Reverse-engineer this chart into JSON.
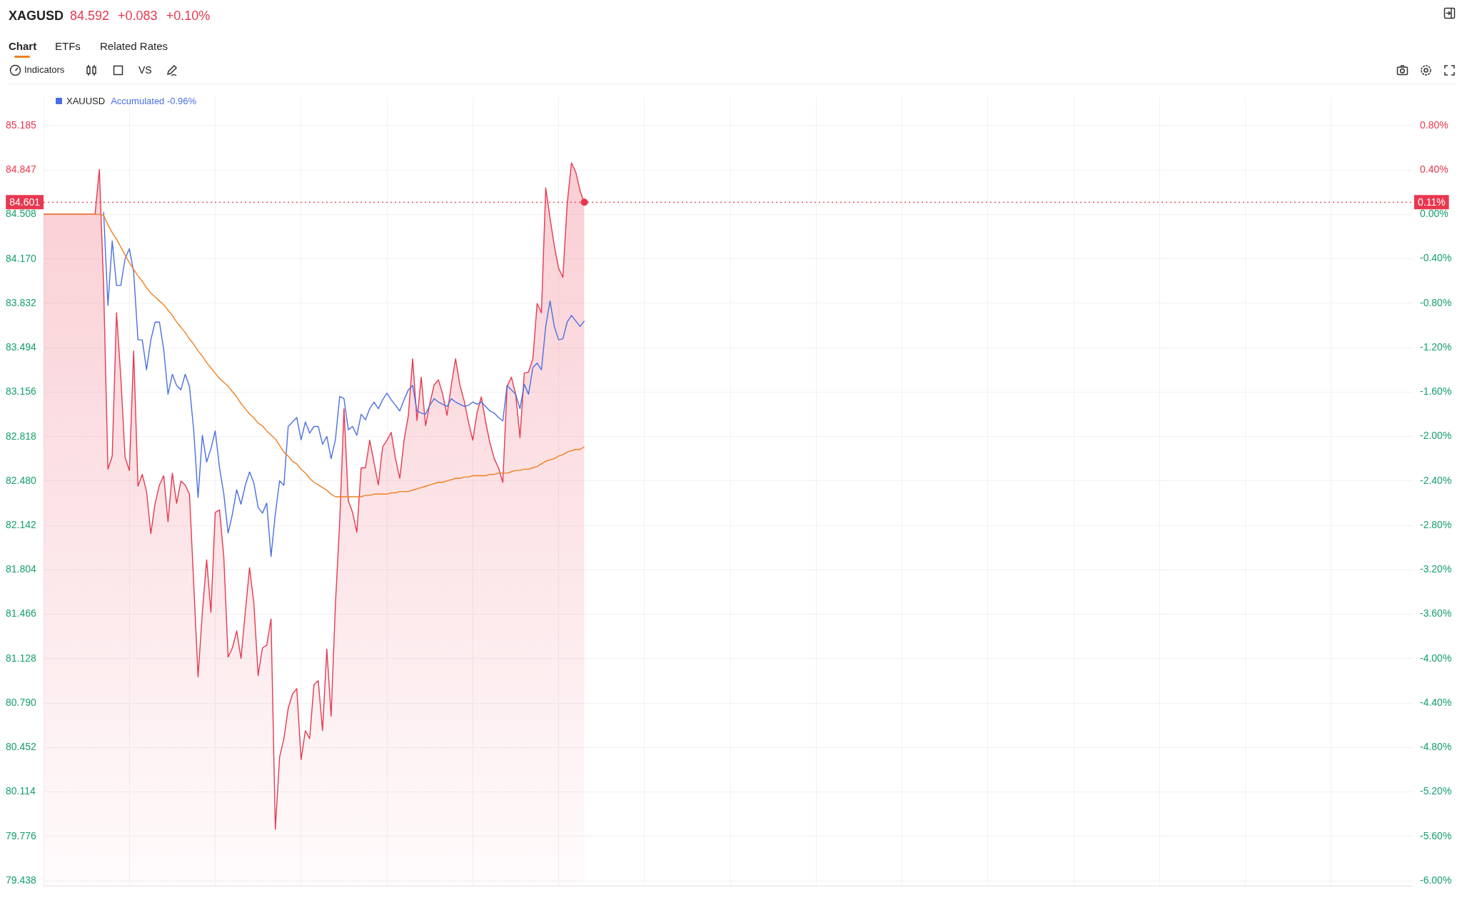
{
  "chart_data": {
    "type": "line",
    "title": "XAGUSD",
    "subtitle": "84.592 +0.083 +0.10%",
    "annotations": [
      "Chart",
      "ETFs",
      "Related Rates",
      "Indicators",
      "VS",
      "Accumulated -0.96%",
      "0.11%"
    ],
    "categories": [
      null,
      null,
      null,
      null,
      null,
      null,
      null,
      null,
      null,
      null,
      null,
      null,
      null,
      null,
      null,
      null,
      null,
      null,
      null,
      null,
      null,
      null,
      null,
      null,
      null,
      null,
      null,
      null,
      null,
      null,
      null,
      null,
      null,
      null,
      null,
      null,
      null,
      null,
      null,
      null,
      null,
      null,
      null,
      null,
      null,
      null,
      null,
      null,
      null,
      null,
      null,
      null,
      null,
      null,
      null,
      null,
      null,
      null,
      null,
      null,
      null,
      null,
      null,
      null,
      null,
      null,
      null,
      null,
      null,
      null,
      null,
      null,
      null,
      null,
      null,
      null,
      null,
      null,
      null,
      null,
      null,
      null,
      null,
      null,
      null,
      null,
      null,
      null,
      null,
      null,
      null,
      null,
      null,
      null,
      null,
      null,
      null,
      null,
      null,
      null,
      null,
      null,
      null,
      null,
      null,
      null,
      null,
      null,
      null,
      null,
      null,
      null,
      null,
      null,
      null,
      null,
      null,
      null,
      null,
      null,
      null,
      null,
      null,
      null,
      null,
      null,
      null,
      null,
      null,
      null,
      null,
      null,
      null,
      null,
      null,
      null,
      null,
      null,
      null,
      null,
      null,
      null,
      null,
      null,
      null,
      null,
      null,
      null,
      null,
      null,
      null,
      null,
      null,
      null,
      null,
      null,
      null,
      null,
      null,
      null,
      null,
      null,
      null,
      null,
      null,
      null,
      null,
      null,
      null,
      null,
      null,
      null,
      null,
      null,
      null,
      null,
      null,
      null,
      null,
      null,
      null,
      null,
      null,
      null,
      null,
      null,
      null,
      null,
      null,
      null,
      null,
      null,
      null,
      null,
      null,
      null,
      null,
      null,
      null,
      null,
      null,
      null,
      null,
      null,
      null,
      null,
      null,
      null,
      null,
      null,
      null,
      null,
      null,
      null,
      null,
      null,
      null,
      null,
      null,
      null,
      null,
      null,
      null,
      null,
      null,
      null,
      null,
      null,
      null,
      null,
      null,
      null,
      null,
      null,
      null,
      null,
      null,
      null,
      null,
      null,
      null,
      null,
      null,
      null,
      null,
      null,
      null,
      null,
      null,
      null,
      null,
      null,
      null,
      null,
      null,
      null,
      null,
      null,
      null,
      null,
      null,
      null,
      null,
      null,
      null,
      null,
      null,
      null,
      null,
      null,
      null,
      null,
      null,
      null,
      null,
      null,
      null,
      null,
      null,
      null,
      null,
      null,
      null,
      null,
      null,
      null,
      null,
      null,
      null,
      null,
      null,
      null,
      null,
      null,
      null,
      null,
      null,
      null,
      null,
      null,
      null,
      null,
      null,
      null,
      null,
      null,
      null,
      null,
      null,
      null,
      null,
      null,
      null,
      null,
      null,
      null,
      null,
      null,
      null,
      null
    ],
    "series": [
      {
        "type": "area",
        "color": "#e8384f",
        "values": [
          84.51,
          84.51,
          84.51,
          84.51,
          84.51,
          84.51,
          84.51,
          84.51,
          84.51,
          84.51,
          84.51,
          84.51,
          84.51,
          84.85,
          83.96,
          82.57,
          82.67,
          83.76,
          83.27,
          82.66,
          82.56,
          83.47,
          82.44,
          82.53,
          82.4,
          82.08,
          82.31,
          82.45,
          82.52,
          82.17,
          82.54,
          82.31,
          82.48,
          82.45,
          82.38,
          81.69,
          80.99,
          81.48,
          81.88,
          81.48,
          82.24,
          82.26,
          81.9,
          81.14,
          81.21,
          81.34,
          81.13,
          81.48,
          81.82,
          81.55,
          81.0,
          81.21,
          81.23,
          81.43,
          79.83,
          80.38,
          80.52,
          80.75,
          80.86,
          80.9,
          80.36,
          80.58,
          80.52,
          80.93,
          80.96,
          80.58,
          81.2,
          80.69,
          81.54,
          82.17,
          83.03,
          82.33,
          82.24,
          82.09,
          82.58,
          82.58,
          82.79,
          82.62,
          82.45,
          82.74,
          82.79,
          82.85,
          82.65,
          82.5,
          82.79,
          82.98,
          83.41,
          82.94,
          83.27,
          82.9,
          83.07,
          83.21,
          83.25,
          83.14,
          82.98,
          83.21,
          83.41,
          83.21,
          83.09,
          82.93,
          82.79,
          83.0,
          83.12,
          82.93,
          82.77,
          82.65,
          82.58,
          82.47,
          83.2,
          83.27,
          83.14,
          82.81,
          83.3,
          83.31,
          83.41,
          83.83,
          83.76,
          84.71,
          84.48,
          84.27,
          84.1,
          84.03,
          84.59,
          84.9,
          84.83,
          84.69,
          84.59,
          null,
          null,
          null,
          null,
          null,
          null,
          null,
          null,
          null,
          null,
          null,
          null,
          null,
          null,
          null,
          null,
          null,
          null,
          null,
          null,
          null,
          null,
          null,
          null,
          null,
          null,
          null,
          null,
          null,
          null,
          null,
          null,
          null,
          null,
          null,
          null,
          null,
          null,
          null,
          null,
          null,
          null,
          null,
          null,
          null,
          null,
          null,
          null,
          null,
          null,
          null,
          null,
          null,
          null,
          null,
          null,
          null,
          null,
          null,
          null,
          null,
          null,
          null,
          null,
          null,
          null,
          null,
          null,
          null,
          null,
          null,
          null,
          null,
          null,
          null,
          null,
          null,
          null,
          null,
          null,
          null,
          null,
          null,
          null,
          null,
          null,
          null,
          null,
          null,
          null,
          null,
          null,
          null,
          null,
          null,
          null,
          null,
          null,
          null,
          null,
          null,
          null,
          null,
          null,
          null,
          null,
          null,
          null,
          null,
          null,
          null,
          null,
          null,
          null,
          null,
          null,
          null,
          null,
          null,
          null,
          null,
          null,
          null,
          null,
          null,
          null,
          null,
          null,
          null,
          null,
          null,
          null,
          null,
          null,
          null,
          null,
          null,
          null,
          null,
          null,
          null,
          null,
          null,
          null,
          null,
          null,
          null,
          null,
          null,
          null,
          null,
          null,
          null,
          null,
          null,
          null,
          null,
          null,
          null,
          null,
          null,
          null,
          null,
          null,
          null,
          null,
          null,
          null,
          null,
          null,
          null,
          null,
          null,
          null,
          null,
          null,
          null,
          null,
          null,
          null,
          null,
          null,
          null,
          null,
          null,
          null,
          null,
          null,
          null,
          null,
          null,
          null,
          null
        ]
      },
      {
        "type": "line",
        "name": "XAUUSD",
        "color": "#4a6fe3",
        "axis": "y2",
        "values": [
          null,
          null,
          null,
          null,
          null,
          null,
          null,
          null,
          null,
          null,
          null,
          null,
          null,
          null,
          0.02,
          -0.82,
          -0.24,
          -0.64,
          -0.64,
          -0.4,
          -0.31,
          -0.52,
          -1.13,
          -1.13,
          -1.4,
          -1.13,
          -0.97,
          -0.97,
          -1.22,
          -1.62,
          -1.44,
          -1.54,
          -1.58,
          -1.44,
          -1.55,
          -1.95,
          -2.55,
          -1.99,
          -2.23,
          -2.11,
          -1.95,
          -2.28,
          -2.52,
          -2.87,
          -2.7,
          -2.48,
          -2.61,
          -2.44,
          -2.32,
          -2.42,
          -2.64,
          -2.69,
          -2.6,
          -3.08,
          -2.7,
          -2.4,
          -2.44,
          -1.91,
          -1.87,
          -1.83,
          -2.03,
          -1.87,
          -1.97,
          -1.91,
          -1.91,
          -2.07,
          -2.0,
          -2.2,
          -2.03,
          -1.64,
          -1.66,
          -1.94,
          -1.91,
          -1.99,
          -1.8,
          -1.85,
          -1.75,
          -1.69,
          -1.75,
          -1.67,
          -1.61,
          -1.67,
          -1.72,
          -1.77,
          -1.67,
          -1.58,
          -1.54,
          -1.77,
          -1.79,
          -1.8,
          -1.72,
          -1.66,
          -1.69,
          -1.71,
          -1.73,
          -1.66,
          -1.69,
          -1.71,
          -1.73,
          -1.72,
          -1.69,
          -1.71,
          -1.69,
          -1.73,
          -1.77,
          -1.79,
          -1.83,
          -1.86,
          -1.54,
          -1.58,
          -1.62,
          -1.75,
          -1.53,
          -1.62,
          -1.38,
          -1.34,
          -1.4,
          -1.01,
          -0.78,
          -1.01,
          -1.13,
          -1.12,
          -0.97,
          -0.91,
          -0.96,
          -1.01,
          -0.96,
          null,
          null,
          null,
          null,
          null,
          null,
          null,
          null,
          null,
          null,
          null,
          null,
          null,
          null,
          null,
          null,
          null,
          null,
          null,
          null,
          null,
          null,
          null,
          null,
          null,
          null,
          null,
          null,
          null,
          null,
          null,
          null,
          null,
          null,
          null,
          null,
          null,
          null,
          null,
          null,
          null,
          null,
          null,
          null,
          null,
          null,
          null,
          null,
          null,
          null,
          null,
          null,
          null,
          null,
          null,
          null,
          null,
          null,
          null,
          null,
          null,
          null,
          null,
          null,
          null,
          null,
          null,
          null,
          null,
          null,
          null,
          null,
          null,
          null,
          null,
          null,
          null,
          null,
          null,
          null,
          null,
          null,
          null,
          null,
          null,
          null,
          null,
          null,
          null,
          null,
          null,
          null,
          null,
          null,
          null,
          null,
          null,
          null,
          null,
          null,
          null,
          null,
          null,
          null,
          null,
          null,
          null,
          null,
          null,
          null,
          null,
          null,
          null,
          null,
          null,
          null,
          null,
          null,
          null,
          null,
          null,
          null,
          null,
          null,
          null,
          null,
          null,
          null,
          null,
          null,
          null,
          null,
          null,
          null,
          null,
          null,
          null,
          null,
          null,
          null,
          null,
          null,
          null,
          null,
          null,
          null,
          null,
          null,
          null,
          null,
          null,
          null,
          null,
          null,
          null,
          null,
          null,
          null,
          null,
          null,
          null,
          null,
          null,
          null,
          null,
          null,
          null,
          null,
          null,
          null,
          null,
          null,
          null,
          null,
          null,
          null,
          null,
          null,
          null,
          null,
          null,
          null,
          null,
          null,
          null,
          null,
          null,
          null,
          null,
          null,
          null,
          null,
          null
        ]
      },
      {
        "type": "line",
        "color": "#f07f1f",
        "values": [
          84.51,
          84.51,
          84.51,
          84.51,
          84.51,
          84.51,
          84.51,
          84.51,
          84.51,
          84.51,
          84.51,
          84.51,
          84.51,
          84.51,
          84.5,
          84.43,
          84.37,
          84.32,
          84.26,
          84.2,
          84.14,
          84.09,
          84.04,
          84.0,
          83.95,
          83.91,
          83.88,
          83.85,
          83.82,
          83.78,
          83.74,
          83.69,
          83.65,
          83.61,
          83.56,
          83.52,
          83.47,
          83.43,
          83.38,
          83.34,
          83.3,
          83.26,
          83.23,
          83.2,
          83.16,
          83.12,
          83.07,
          83.03,
          82.99,
          82.96,
          82.92,
          82.9,
          82.86,
          82.83,
          82.8,
          82.75,
          82.7,
          82.67,
          82.63,
          82.61,
          82.57,
          82.54,
          82.5,
          82.47,
          82.45,
          82.43,
          82.41,
          82.38,
          82.36,
          82.36,
          82.36,
          82.36,
          82.36,
          82.36,
          82.36,
          82.37,
          82.37,
          82.38,
          82.38,
          82.38,
          82.38,
          82.39,
          82.39,
          82.4,
          82.4,
          82.4,
          82.41,
          82.42,
          82.43,
          82.44,
          82.45,
          82.46,
          82.47,
          82.47,
          82.48,
          82.49,
          82.5,
          82.5,
          82.51,
          82.51,
          82.52,
          82.52,
          82.52,
          82.52,
          82.53,
          82.53,
          82.54,
          82.54,
          82.54,
          82.55,
          82.56,
          82.56,
          82.57,
          82.57,
          82.58,
          82.59,
          82.61,
          82.63,
          82.64,
          82.65,
          82.67,
          82.68,
          82.7,
          82.71,
          82.72,
          82.72,
          82.74,
          null,
          null,
          null,
          null,
          null,
          null,
          null,
          null,
          null,
          null,
          null,
          null,
          null,
          null,
          null,
          null,
          null,
          null,
          null,
          null,
          null,
          null,
          null,
          null,
          null,
          null,
          null,
          null,
          null,
          null,
          null,
          null,
          null,
          null,
          null,
          null,
          null,
          null,
          null,
          null,
          null,
          null,
          null,
          null,
          null,
          null,
          null,
          null,
          null,
          null,
          null,
          null,
          null,
          null,
          null,
          null,
          null,
          null,
          null,
          null,
          null,
          null,
          null,
          null,
          null,
          null,
          null,
          null,
          null,
          null,
          null,
          null,
          null,
          null,
          null,
          null,
          null,
          null,
          null,
          null,
          null,
          null,
          null,
          null,
          null,
          null,
          null,
          null,
          null,
          null,
          null,
          null,
          null,
          null,
          null,
          null,
          null,
          null,
          null,
          null,
          null,
          null,
          null,
          null,
          null,
          null,
          null,
          null,
          null,
          null,
          null,
          null,
          null,
          null,
          null,
          null,
          null,
          null,
          null,
          null,
          null,
          null,
          null,
          null,
          null,
          null,
          null,
          null,
          null,
          null,
          null,
          null,
          null,
          null,
          null,
          null,
          null,
          null,
          null,
          null,
          null,
          null,
          null,
          null,
          null,
          null,
          null,
          null,
          null,
          null,
          null,
          null,
          null,
          null,
          null,
          null,
          null,
          null,
          null,
          null,
          null,
          null,
          null,
          null,
          null,
          null,
          null,
          null,
          null,
          null,
          null,
          null,
          null,
          null,
          null,
          null,
          null,
          null,
          null,
          null,
          null,
          null,
          null,
          null,
          null,
          null,
          null,
          null,
          null,
          null,
          null,
          null,
          null
        ]
      }
    ],
    "ylim": [
      79.397,
      85.399
    ],
    "yticks": [
      85.185,
      84.847,
      84.508,
      {
        "value": 84.17,
        "label": "84.170"
      },
      83.832,
      83.494,
      83.156,
      82.818,
      {
        "value": 82.48,
        "label": "82.480"
      },
      82.142,
      81.804,
      81.466,
      81.128,
      {
        "value": 80.79,
        "label": "80.790"
      },
      80.452,
      80.114,
      79.776,
      79.438
    ],
    "y2lim": [
      -6.049,
      1.053
    ],
    "y2ticks": [
      {
        "value": 0.8,
        "label": "0.80%"
      },
      {
        "value": 0.4,
        "label": "0.40%"
      },
      {
        "value": 0,
        "label": "0.00%"
      },
      {
        "value": -0.4,
        "label": "-0.40%"
      },
      {
        "value": -0.8,
        "label": "-0.80%"
      },
      {
        "value": -1.2,
        "label": "-1.20%"
      },
      {
        "value": -1.6,
        "label": "-1.60%"
      },
      {
        "value": -2,
        "label": "-2.00%"
      },
      {
        "value": -2.4,
        "label": "-2.40%"
      },
      {
        "value": -2.8,
        "label": "-2.80%"
      },
      {
        "value": -3.2,
        "label": "-3.20%"
      },
      {
        "value": -3.6,
        "label": "-3.60%"
      },
      {
        "value": -4,
        "label": "-4.00%"
      },
      {
        "value": -4.4,
        "label": "-4.40%"
      },
      {
        "value": -4.8,
        "label": "-4.80%"
      },
      {
        "value": -5.2,
        "label": "-5.20%"
      },
      {
        "value": -5.6,
        "label": "-5.60%"
      },
      {
        "value": -6,
        "label": "-6.00%"
      }
    ],
    "ref_lines": [
      {
        "axis": "y",
        "value": 84.601,
        "label": "84.601",
        "color": "#e8384f",
        "line_style": "dotted"
      }
    ],
    "grid": true,
    "legend": "top left",
    "tick_labels": "y"
  }
}
